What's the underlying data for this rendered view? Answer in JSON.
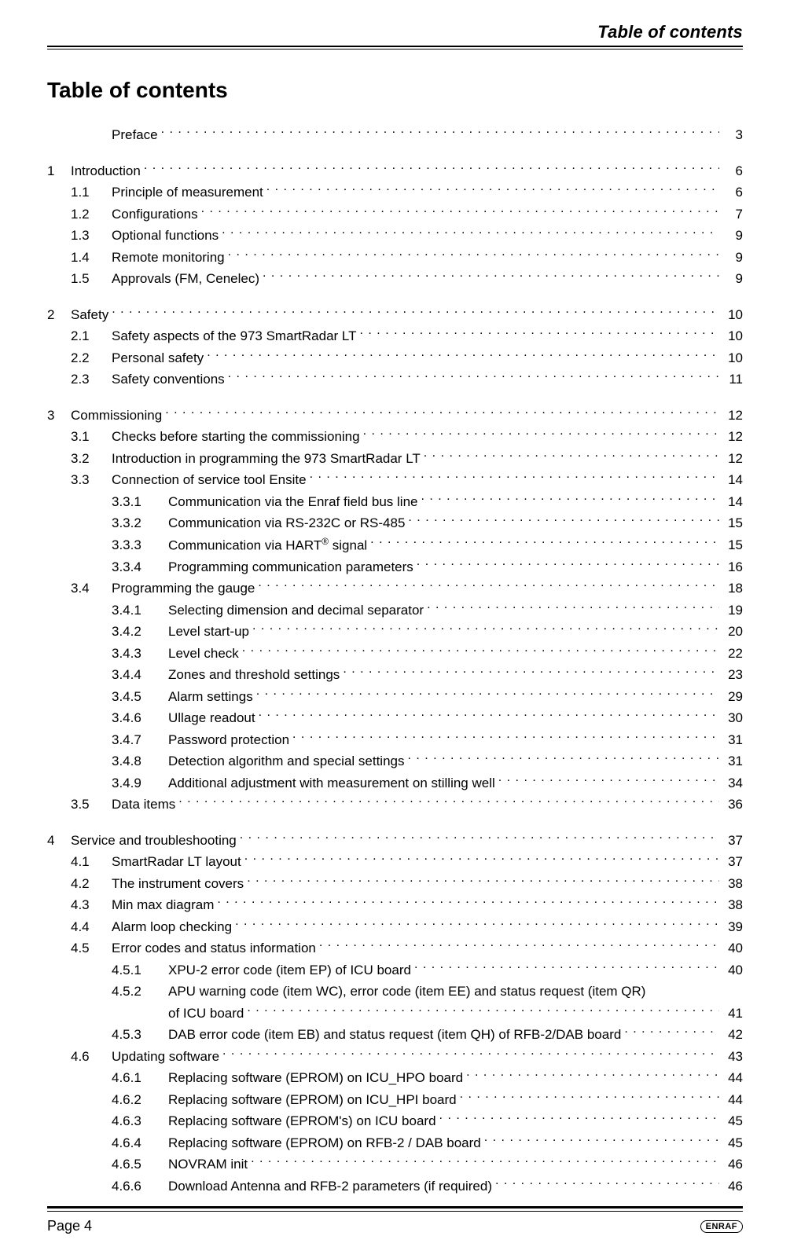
{
  "running_header": "Table of contents",
  "title": "Table of contents",
  "page_label": "Page 4",
  "logo_text": "ENRAF",
  "toc": [
    {
      "level": 1,
      "num": "",
      "label": "Preface",
      "page": "3",
      "prenum_spacer": "l0"
    },
    {
      "gap": true
    },
    {
      "level": 0,
      "num": "1",
      "label": "Introduction",
      "page": "6"
    },
    {
      "level": 1,
      "num": "1.1",
      "label": "Principle of measurement",
      "page": "6"
    },
    {
      "level": 1,
      "num": "1.2",
      "label": "Configurations",
      "page": "7"
    },
    {
      "level": 1,
      "num": "1.3",
      "label": "Optional functions",
      "page": "9"
    },
    {
      "level": 1,
      "num": "1.4",
      "label": "Remote monitoring",
      "page": "9"
    },
    {
      "level": 1,
      "num": "1.5",
      "label": "Approvals (FM, Cenelec)",
      "page": "9"
    },
    {
      "gap": true
    },
    {
      "level": 0,
      "num": "2",
      "label": "Safety",
      "page": "10"
    },
    {
      "level": 1,
      "num": "2.1",
      "label": "Safety aspects of the 973 SmartRadar LT",
      "page": "10"
    },
    {
      "level": 1,
      "num": "2.2",
      "label": "Personal safety",
      "page": "10"
    },
    {
      "level": 1,
      "num": "2.3",
      "label": "Safety conventions",
      "page": "11"
    },
    {
      "gap": true
    },
    {
      "level": 0,
      "num": "3",
      "label": "Commissioning",
      "page": "12"
    },
    {
      "level": 1,
      "num": "3.1",
      "label": "Checks before starting the commissioning",
      "page": "12"
    },
    {
      "level": 1,
      "num": "3.2",
      "label": "Introduction in programming the 973 SmartRadar LT",
      "page": "12"
    },
    {
      "level": 1,
      "num": "3.3",
      "label": "Connection of service tool Ensite",
      "page": "14"
    },
    {
      "level": 2,
      "num": "3.3.1",
      "label": "Communication via the Enraf field bus line",
      "page": "14"
    },
    {
      "level": 2,
      "num": "3.3.2",
      "label": "Communication via RS-232C or RS-485",
      "page": "15"
    },
    {
      "level": 2,
      "num": "3.3.3",
      "label_html": "Communication via HART<sup class='reg'>®</sup> signal",
      "page": "15"
    },
    {
      "level": 2,
      "num": "3.3.4",
      "label": "Programming communication parameters",
      "page": "16"
    },
    {
      "level": 1,
      "num": "3.4",
      "label": "Programming the gauge",
      "page": "18"
    },
    {
      "level": 2,
      "num": "3.4.1",
      "label": "Selecting dimension and decimal separator",
      "page": "19"
    },
    {
      "level": 2,
      "num": "3.4.2",
      "label": "Level start-up",
      "page": "20"
    },
    {
      "level": 2,
      "num": "3.4.3",
      "label": "Level check",
      "page": "22"
    },
    {
      "level": 2,
      "num": "3.4.4",
      "label": "Zones and threshold settings",
      "page": "23"
    },
    {
      "level": 2,
      "num": "3.4.5",
      "label": "Alarm settings",
      "page": "29"
    },
    {
      "level": 2,
      "num": "3.4.6",
      "label": "Ullage readout",
      "page": "30"
    },
    {
      "level": 2,
      "num": "3.4.7",
      "label": "Password protection",
      "page": "31"
    },
    {
      "level": 2,
      "num": "3.4.8",
      "label": "Detection algorithm and special settings",
      "page": "31"
    },
    {
      "level": 2,
      "num": "3.4.9",
      "label": "Additional adjustment with measurement on stilling well",
      "page": "34"
    },
    {
      "level": 1,
      "num": "3.5",
      "label": "Data items",
      "page": "36"
    },
    {
      "gap": true
    },
    {
      "level": 0,
      "num": "4",
      "label": "Service and troubleshooting",
      "page": "37"
    },
    {
      "level": 1,
      "num": "4.1",
      "label": "SmartRadar LT layout",
      "page": "37"
    },
    {
      "level": 1,
      "num": "4.2",
      "label": "The instrument covers",
      "page": "38"
    },
    {
      "level": 1,
      "num": "4.3",
      "label": "Min max diagram",
      "page": "38"
    },
    {
      "level": 1,
      "num": "4.4",
      "label": "Alarm loop checking",
      "page": "39"
    },
    {
      "level": 1,
      "num": "4.5",
      "label": "Error codes and status information",
      "page": "40"
    },
    {
      "level": 2,
      "num": "4.5.1",
      "label": "XPU-2 error code (item EP) of ICU board",
      "page": "40"
    },
    {
      "level": 2,
      "num": "4.5.2",
      "label": "APU warning code (item WC), error code (item EE) and status request (item QR)",
      "noleader": true
    },
    {
      "level": 2,
      "num": "",
      "label": "of ICU board",
      "page": "41",
      "cont": true
    },
    {
      "level": 2,
      "num": "4.5.3",
      "label": "DAB error code (item EB) and status request (item QH) of RFB-2/DAB board",
      "page": "42"
    },
    {
      "level": 1,
      "num": "4.6",
      "label": "Updating software",
      "page": "43"
    },
    {
      "level": 2,
      "num": "4.6.1",
      "label": "Replacing software (EPROM) on ICU_HPO board",
      "page": "44"
    },
    {
      "level": 2,
      "num": "4.6.2",
      "label": "Replacing software (EPROM) on ICU_HPI board",
      "page": "44"
    },
    {
      "level": 2,
      "num": "4.6.3",
      "label": "Replacing software (EPROM's) on ICU board",
      "page": "45"
    },
    {
      "level": 2,
      "num": "4.6.4",
      "label": "Replacing software (EPROM) on RFB-2 / DAB board",
      "page": "45"
    },
    {
      "level": 2,
      "num": "4.6.5",
      "label": "NOVRAM init",
      "page": "46"
    },
    {
      "level": 2,
      "num": "4.6.6",
      "label": "Download Antenna and RFB-2 parameters (if required)",
      "page": "46"
    }
  ]
}
